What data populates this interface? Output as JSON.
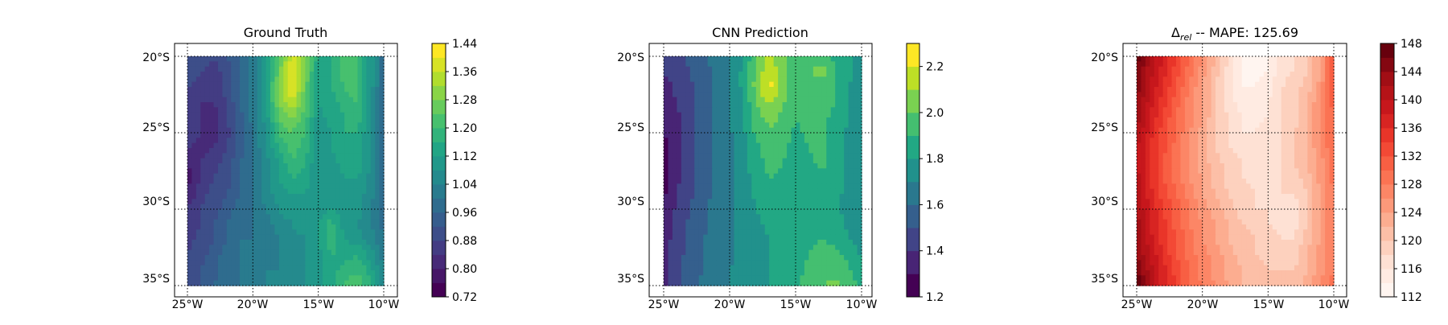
{
  "figure": {
    "panels": [
      {
        "title": "Ground Truth",
        "colorbar_ticks": [
          "0.72",
          "0.80",
          "0.88",
          "0.96",
          "1.04",
          "1.12",
          "1.20",
          "1.28",
          "1.36",
          "1.44"
        ]
      },
      {
        "title": "CNN Prediction",
        "colorbar_ticks": [
          "1.2",
          "1.4",
          "1.6",
          "1.8",
          "2.0",
          "2.2"
        ]
      },
      {
        "title_base": "Δ",
        "title_sub": "rel",
        "title_rest": " -- MAPE: 125.69",
        "colorbar_ticks": [
          "112",
          "116",
          "120",
          "124",
          "128",
          "132",
          "136",
          "140",
          "144",
          "148"
        ]
      }
    ],
    "lat_labels": [
      "20°S",
      "25°S",
      "30°S",
      "35°S"
    ],
    "lon_labels": [
      "25°W",
      "20°W",
      "15°W",
      "10°W"
    ]
  },
  "chart_data": [
    {
      "type": "heatmap",
      "title": "Ground Truth",
      "x_label_ticks": [
        "25°W",
        "20°W",
        "15°W",
        "10°W"
      ],
      "y_label_ticks": [
        "20°S",
        "25°S",
        "30°S",
        "35°S"
      ],
      "lon_range": [
        -25,
        -10
      ],
      "lat_range": [
        -35,
        -20
      ],
      "colormap": "viridis",
      "levels": [
        0.72,
        0.76,
        0.8,
        0.84,
        0.88,
        0.92,
        0.96,
        1.0,
        1.04,
        1.08,
        1.12,
        1.16,
        1.2,
        1.24,
        1.28,
        1.32,
        1.36,
        1.4,
        1.44
      ],
      "colorbar_range": [
        0.72,
        1.44
      ],
      "lon": [
        -25,
        -24,
        -23,
        -22,
        -21,
        -20,
        -19,
        -18,
        -17,
        -16,
        -15,
        -14,
        -13,
        -12,
        -11,
        -10
      ],
      "lat": [
        -20,
        -21,
        -22,
        -23,
        -24,
        -25,
        -26,
        -27,
        -28,
        -29,
        -30,
        -31,
        -32,
        -33,
        -34,
        -35
      ],
      "values": [
        [
          0.92,
          0.9,
          0.88,
          0.92,
          0.96,
          1.02,
          1.1,
          1.24,
          1.38,
          1.3,
          1.14,
          1.16,
          1.22,
          1.2,
          1.1,
          0.98
        ],
        [
          0.9,
          0.88,
          0.86,
          0.9,
          0.96,
          1.02,
          1.1,
          1.26,
          1.4,
          1.28,
          1.12,
          1.16,
          1.24,
          1.2,
          1.1,
          0.98
        ],
        [
          0.88,
          0.86,
          0.84,
          0.9,
          0.96,
          1.02,
          1.12,
          1.3,
          1.42,
          1.26,
          1.12,
          1.16,
          1.2,
          1.22,
          1.1,
          0.98
        ],
        [
          0.86,
          0.84,
          0.84,
          0.88,
          0.96,
          1.02,
          1.12,
          1.28,
          1.36,
          1.24,
          1.12,
          1.14,
          1.18,
          1.2,
          1.08,
          0.98
        ],
        [
          0.86,
          0.84,
          0.82,
          0.88,
          0.94,
          1.02,
          1.1,
          1.24,
          1.28,
          1.22,
          1.1,
          1.14,
          1.16,
          1.18,
          1.08,
          0.98
        ],
        [
          0.88,
          0.84,
          0.82,
          0.86,
          0.94,
          1.0,
          1.08,
          1.2,
          1.24,
          1.2,
          1.1,
          1.12,
          1.16,
          1.16,
          1.08,
          0.98
        ],
        [
          0.84,
          0.82,
          0.84,
          0.88,
          0.94,
          1.0,
          1.08,
          1.16,
          1.22,
          1.18,
          1.08,
          1.12,
          1.16,
          1.14,
          1.08,
          0.98
        ],
        [
          0.8,
          0.84,
          0.86,
          0.9,
          0.96,
          1.0,
          1.06,
          1.12,
          1.2,
          1.16,
          1.08,
          1.1,
          1.14,
          1.14,
          1.08,
          0.98
        ],
        [
          0.78,
          0.84,
          0.88,
          0.9,
          0.96,
          1.0,
          1.06,
          1.12,
          1.16,
          1.14,
          1.08,
          1.1,
          1.12,
          1.12,
          1.06,
          0.98
        ],
        [
          0.8,
          0.86,
          0.9,
          0.92,
          0.96,
          1.0,
          1.06,
          1.1,
          1.12,
          1.12,
          1.08,
          1.1,
          1.12,
          1.1,
          1.06,
          0.98
        ],
        [
          0.84,
          0.88,
          0.9,
          0.94,
          0.98,
          1.0,
          1.04,
          1.08,
          1.1,
          1.12,
          1.1,
          1.12,
          1.1,
          1.1,
          1.04,
          0.98
        ],
        [
          0.86,
          0.88,
          0.92,
          0.96,
          0.98,
          1.0,
          1.02,
          1.06,
          1.08,
          1.1,
          1.12,
          1.18,
          1.1,
          1.08,
          1.04,
          0.98
        ],
        [
          0.86,
          0.9,
          0.92,
          0.96,
          1.0,
          1.0,
          1.02,
          1.04,
          1.06,
          1.08,
          1.12,
          1.2,
          1.12,
          1.1,
          1.06,
          1.0
        ],
        [
          0.88,
          0.9,
          0.94,
          0.98,
          1.0,
          1.02,
          1.02,
          1.04,
          1.06,
          1.08,
          1.1,
          1.16,
          1.14,
          1.16,
          1.1,
          1.02
        ],
        [
          0.88,
          0.92,
          0.94,
          0.98,
          1.0,
          1.02,
          1.04,
          1.04,
          1.06,
          1.08,
          1.1,
          1.14,
          1.18,
          1.2,
          1.14,
          1.04
        ],
        [
          0.9,
          0.92,
          0.96,
          0.98,
          1.0,
          1.02,
          1.04,
          1.06,
          1.06,
          1.08,
          1.1,
          1.14,
          1.2,
          1.22,
          1.16,
          1.06
        ]
      ]
    },
    {
      "type": "heatmap",
      "title": "CNN Prediction",
      "x_label_ticks": [
        "25°W",
        "20°W",
        "15°W",
        "10°W"
      ],
      "y_label_ticks": [
        "20°S",
        "25°S",
        "30°S",
        "35°S"
      ],
      "lon_range": [
        -25,
        -10
      ],
      "lat_range": [
        -35,
        -20
      ],
      "colormap": "viridis",
      "levels": [
        1.2,
        1.3,
        1.4,
        1.5,
        1.6,
        1.7,
        1.8,
        1.9,
        2.0,
        2.1,
        2.2,
        2.3
      ],
      "colorbar_range": [
        1.2,
        2.3
      ],
      "lon": [
        -25,
        -24,
        -23,
        -22,
        -21,
        -20,
        -19,
        -18,
        -17,
        -16,
        -15,
        -14,
        -13,
        -12,
        -11,
        -10
      ],
      "lat": [
        -20,
        -21,
        -22,
        -23,
        -24,
        -25,
        -26,
        -27,
        -28,
        -29,
        -30,
        -31,
        -32,
        -33,
        -34,
        -35
      ],
      "values": [
        [
          1.45,
          1.48,
          1.52,
          1.58,
          1.64,
          1.7,
          1.8,
          1.98,
          2.12,
          2.02,
          1.9,
          2.0,
          1.94,
          1.88,
          1.82,
          1.78
        ],
        [
          1.4,
          1.44,
          1.5,
          1.56,
          1.62,
          1.7,
          1.82,
          2.02,
          2.18,
          2.04,
          1.9,
          1.98,
          2.04,
          1.9,
          1.82,
          1.76
        ],
        [
          1.36,
          1.42,
          1.48,
          1.56,
          1.62,
          1.7,
          1.82,
          2.04,
          2.24,
          2.06,
          1.92,
          1.96,
          1.96,
          1.92,
          1.8,
          1.76
        ],
        [
          1.34,
          1.4,
          1.48,
          1.56,
          1.62,
          1.7,
          1.8,
          2.0,
          2.12,
          2.02,
          1.92,
          1.94,
          1.94,
          1.9,
          1.8,
          1.74
        ],
        [
          1.32,
          1.38,
          1.46,
          1.54,
          1.62,
          1.7,
          1.8,
          1.96,
          2.04,
          1.98,
          1.9,
          1.92,
          1.92,
          1.88,
          1.8,
          1.74
        ],
        [
          1.3,
          1.36,
          1.46,
          1.54,
          1.62,
          1.68,
          1.78,
          1.92,
          1.98,
          1.94,
          1.88,
          1.92,
          1.92,
          1.86,
          1.78,
          1.72
        ],
        [
          1.26,
          1.36,
          1.46,
          1.54,
          1.62,
          1.68,
          1.76,
          1.88,
          1.96,
          1.92,
          1.86,
          1.9,
          1.92,
          1.86,
          1.78,
          1.72
        ],
        [
          1.24,
          1.36,
          1.46,
          1.54,
          1.62,
          1.68,
          1.76,
          1.86,
          1.92,
          1.9,
          1.84,
          1.88,
          1.92,
          1.84,
          1.78,
          1.72
        ],
        [
          1.24,
          1.38,
          1.48,
          1.56,
          1.62,
          1.68,
          1.74,
          1.84,
          1.9,
          1.88,
          1.84,
          1.86,
          1.88,
          1.84,
          1.76,
          1.72
        ],
        [
          1.28,
          1.4,
          1.48,
          1.56,
          1.62,
          1.68,
          1.74,
          1.82,
          1.86,
          1.86,
          1.82,
          1.84,
          1.86,
          1.84,
          1.76,
          1.72
        ],
        [
          1.32,
          1.42,
          1.5,
          1.58,
          1.64,
          1.68,
          1.74,
          1.8,
          1.84,
          1.84,
          1.82,
          1.84,
          1.84,
          1.82,
          1.76,
          1.72
        ],
        [
          1.34,
          1.44,
          1.52,
          1.58,
          1.64,
          1.68,
          1.72,
          1.78,
          1.82,
          1.84,
          1.82,
          1.86,
          1.86,
          1.84,
          1.78,
          1.74
        ],
        [
          1.36,
          1.44,
          1.52,
          1.6,
          1.64,
          1.68,
          1.72,
          1.76,
          1.8,
          1.82,
          1.84,
          1.88,
          1.9,
          1.88,
          1.8,
          1.76
        ],
        [
          1.36,
          1.46,
          1.54,
          1.6,
          1.66,
          1.68,
          1.72,
          1.76,
          1.8,
          1.82,
          1.84,
          1.9,
          1.94,
          1.94,
          1.86,
          1.78
        ],
        [
          1.38,
          1.46,
          1.54,
          1.6,
          1.66,
          1.7,
          1.72,
          1.76,
          1.8,
          1.82,
          1.86,
          1.92,
          1.98,
          1.98,
          1.92,
          1.82
        ],
        [
          1.38,
          1.48,
          1.56,
          1.62,
          1.66,
          1.7,
          1.74,
          1.78,
          1.8,
          1.84,
          1.88,
          1.94,
          2.0,
          2.02,
          1.96,
          1.86
        ]
      ]
    },
    {
      "type": "heatmap",
      "title": "Δrel -- MAPE: 125.69",
      "x_label_ticks": [
        "25°W",
        "20°W",
        "15°W",
        "10°W"
      ],
      "y_label_ticks": [
        "20°S",
        "25°S",
        "30°S",
        "35°S"
      ],
      "lon_range": [
        -25,
        -10
      ],
      "lat_range": [
        -35,
        -20
      ],
      "colormap": "Reds",
      "levels": [
        112,
        114,
        116,
        118,
        120,
        122,
        124,
        126,
        128,
        130,
        132,
        134,
        136,
        138,
        140,
        142,
        144,
        146,
        148
      ],
      "colorbar_range": [
        112,
        148
      ],
      "lon": [
        -25,
        -24,
        -23,
        -22,
        -21,
        -20,
        -19,
        -18,
        -17,
        -16,
        -15,
        -14,
        -13,
        -12,
        -11,
        -10
      ],
      "lat": [
        -20,
        -21,
        -22,
        -23,
        -24,
        -25,
        -26,
        -27,
        -28,
        -29,
        -30,
        -31,
        -32,
        -33,
        -34,
        -35
      ],
      "values": [
        [
          147,
          142,
          138,
          134,
          130,
          126,
          122,
          118,
          114,
          113,
          114,
          117,
          118,
          120,
          124,
          132
        ],
        [
          146,
          141,
          137,
          133,
          129,
          125,
          121,
          117,
          114,
          113,
          114,
          117,
          118,
          120,
          124,
          132
        ],
        [
          145,
          140,
          136,
          132,
          128,
          124,
          120,
          117,
          114,
          114,
          115,
          118,
          119,
          121,
          125,
          132
        ],
        [
          144,
          139,
          135,
          131,
          127,
          124,
          120,
          117,
          115,
          114,
          116,
          118,
          119,
          122,
          126,
          131
        ],
        [
          143,
          138,
          134,
          130,
          127,
          124,
          120,
          118,
          116,
          115,
          116,
          118,
          119,
          122,
          126,
          130
        ],
        [
          142,
          137,
          133,
          130,
          126,
          123,
          120,
          118,
          116,
          116,
          117,
          118,
          120,
          122,
          126,
          130
        ],
        [
          140,
          136,
          133,
          129,
          126,
          123,
          120,
          118,
          117,
          116,
          117,
          118,
          120,
          122,
          126,
          130
        ],
        [
          140,
          136,
          132,
          129,
          126,
          123,
          121,
          119,
          118,
          117,
          117,
          118,
          120,
          122,
          125,
          129
        ],
        [
          141,
          136,
          132,
          129,
          126,
          124,
          121,
          119,
          118,
          117,
          117,
          118,
          119,
          121,
          125,
          129
        ],
        [
          142,
          137,
          133,
          130,
          127,
          124,
          122,
          120,
          119,
          118,
          117,
          118,
          118,
          120,
          124,
          128
        ],
        [
          142,
          138,
          134,
          131,
          128,
          125,
          123,
          121,
          119,
          118,
          118,
          117,
          117,
          120,
          124,
          128
        ],
        [
          143,
          138,
          135,
          131,
          128,
          126,
          124,
          122,
          120,
          119,
          118,
          117,
          117,
          120,
          124,
          128
        ],
        [
          143,
          139,
          135,
          132,
          129,
          126,
          124,
          122,
          121,
          120,
          119,
          118,
          118,
          121,
          124,
          128
        ],
        [
          144,
          140,
          136,
          132,
          129,
          127,
          125,
          123,
          121,
          120,
          119,
          119,
          119,
          122,
          125,
          128
        ],
        [
          146,
          141,
          137,
          133,
          130,
          127,
          125,
          123,
          122,
          121,
          120,
          120,
          120,
          122,
          125,
          128
        ],
        [
          148,
          142,
          137,
          134,
          130,
          128,
          126,
          124,
          122,
          121,
          121,
          121,
          121,
          123,
          126,
          129
        ]
      ]
    }
  ]
}
